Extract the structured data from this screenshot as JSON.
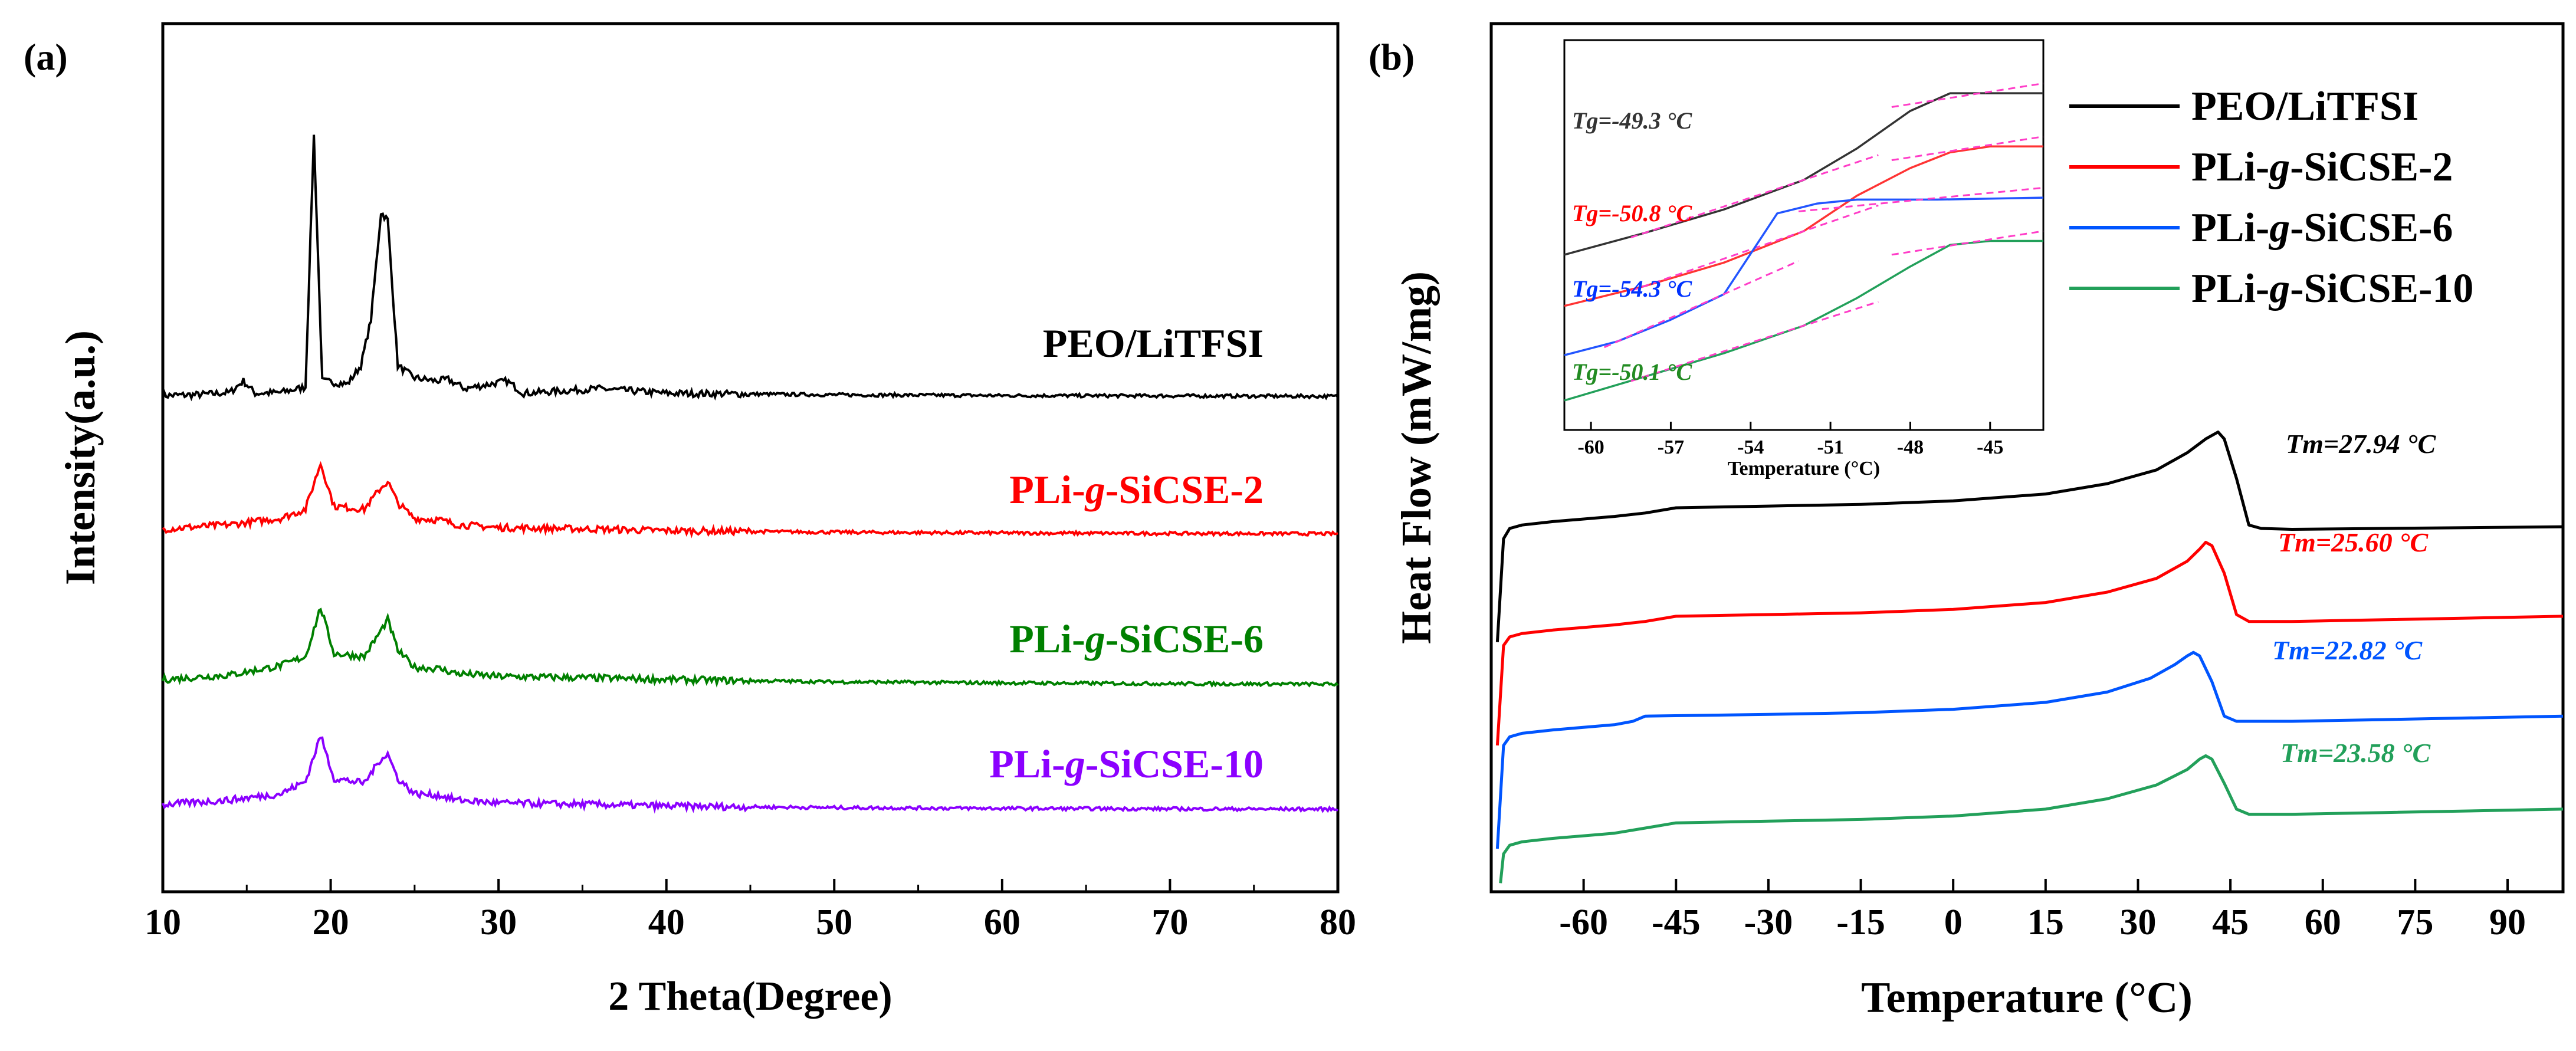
{
  "chart_data": [
    {
      "panel": "(a)",
      "type": "line",
      "xlabel": "2 Theta(Degree)",
      "ylabel": "Intensity(a.u.)",
      "xlim": [
        10,
        80
      ],
      "xticks": [
        "10",
        "20",
        "30",
        "40",
        "50",
        "60",
        "70",
        "80"
      ],
      "grid": false,
      "legend": "labels placed right of each trace",
      "series": [
        {
          "name": "PEO/LiTFSI",
          "color": "#000000",
          "peaks_2theta": [
            14.8,
            19.0,
            21.8,
            23.0,
            23.4,
            26.3,
            27.0,
            30.5,
            36.0
          ],
          "x": [
            10,
            12,
            14,
            14.8,
            15.5,
            17,
            18.5,
            19.0,
            19.5,
            21,
            21.8,
            22.4,
            23.0,
            23.4,
            24.0,
            25,
            26.3,
            27.0,
            28,
            30.5,
            31.5,
            36.0,
            40,
            50,
            60,
            70,
            80
          ],
          "y": [
            0.05,
            0.1,
            0.25,
            1.0,
            0.2,
            0.25,
            0.6,
            17.0,
            1.0,
            0.8,
            2.0,
            5.0,
            12.0,
            11.5,
            2.0,
            1.2,
            1.0,
            1.1,
            0.5,
            1.0,
            0.2,
            0.5,
            0.2,
            0.1,
            0.05,
            0.03,
            0
          ]
        },
        {
          "name": "PLi-g-SiCSE-2",
          "color": "#ff0000",
          "peaks_2theta": [
            19.4,
            23.4,
            26.5
          ],
          "x": [
            10,
            14,
            17,
            18.5,
            19.4,
            20.2,
            22,
            23.0,
            23.4,
            24.0,
            25,
            26.5,
            27.5,
            30,
            36,
            40,
            50,
            60,
            70,
            80
          ],
          "y": [
            0.3,
            0.6,
            1.0,
            1.6,
            4.6,
            1.8,
            1.6,
            3.0,
            3.4,
            2.0,
            1.0,
            0.9,
            0.6,
            0.4,
            0.3,
            0.2,
            0.1,
            0.05,
            0.02,
            0
          ]
        },
        {
          "name": "PLi-g-SiCSE-6",
          "color": "#008000",
          "peaks_2theta": [
            19.4,
            23.4,
            26.5,
            36.0,
            39.8
          ],
          "x": [
            10,
            14,
            17,
            18.5,
            19.4,
            20.2,
            22,
            23.0,
            23.4,
            24.0,
            25,
            26.5,
            27.5,
            30,
            36,
            40,
            50,
            60,
            70,
            80
          ],
          "y": [
            0.3,
            0.6,
            1.2,
            1.8,
            5.0,
            2.0,
            1.8,
            3.5,
            4.2,
            2.2,
            1.1,
            1.0,
            0.7,
            0.5,
            0.4,
            0.3,
            0.15,
            0.08,
            0.03,
            0
          ]
        },
        {
          "name": "PLi-g-SiCSE-10",
          "color": "#8b00ff",
          "peaks_2theta": [
            19.4,
            23.4,
            26.5
          ],
          "x": [
            10,
            14,
            17,
            18.5,
            19.4,
            20.2,
            22,
            23.0,
            23.4,
            24.0,
            25,
            26.5,
            27.5,
            30,
            36,
            40,
            50,
            60,
            70,
            80
          ],
          "y": [
            0.3,
            0.6,
            1.0,
            1.8,
            4.8,
            2.0,
            1.7,
            3.3,
            3.6,
            2.0,
            1.0,
            0.9,
            0.6,
            0.4,
            0.3,
            0.2,
            0.1,
            0.05,
            0.02,
            0
          ]
        }
      ]
    },
    {
      "panel": "(b)",
      "type": "line",
      "xlabel": "Temperature (°C)",
      "ylabel": "Heat Flow (mW/mg)",
      "xlim": [
        -75,
        99
      ],
      "xticks": [
        "-60",
        "-45",
        "-30",
        "-15",
        "0",
        "15",
        "30",
        "45",
        "60",
        "75",
        "90"
      ],
      "xtick_values": [
        -60,
        -45,
        -30,
        -15,
        0,
        15,
        30,
        45,
        60,
        75,
        90
      ],
      "grid": false,
      "legend": "top-right",
      "series": [
        {
          "name": "PEO/LiTFSI",
          "color": "#000000",
          "tm_label": "Tm=27.94 °C",
          "x": [
            -74,
            -73,
            -72,
            -70,
            -65,
            -55,
            -50,
            -45,
            -30,
            -15,
            0,
            15,
            25,
            33,
            38,
            41,
            43,
            44,
            46,
            48,
            50,
            55,
            70,
            99
          ],
          "y": [
            -30,
            30,
            36,
            38,
            40,
            43,
            45,
            48,
            49,
            50,
            52,
            56,
            62,
            70,
            80,
            88,
            92,
            88,
            65,
            38,
            36,
            35.5,
            36,
            37
          ]
        },
        {
          "name": "PLi-g-SiCSE-2",
          "color": "#ff0000",
          "tm_label": "Tm=25.60 °C",
          "x": [
            -74,
            -73,
            -72,
            -70,
            -65,
            -55,
            -50,
            -45,
            -30,
            -15,
            0,
            15,
            25,
            33,
            38,
            40,
            41,
            42,
            44,
            46,
            48,
            55,
            70,
            99
          ],
          "y": [
            -90,
            -32,
            -27,
            -25,
            -23,
            -20,
            -18,
            -15,
            -14,
            -13,
            -11,
            -7,
            -1,
            7,
            17,
            24,
            28,
            26,
            10,
            -14,
            -18,
            -18,
            -17,
            -15
          ]
        },
        {
          "name": "PLi-g-SiCSE-6",
          "color": "#0055ff",
          "tm_label": "Tm=22.82 °C",
          "x": [
            -74,
            -73,
            -72,
            -70,
            -65,
            -55,
            -52,
            -50,
            -30,
            -15,
            0,
            15,
            25,
            32,
            36,
            38,
            39,
            40,
            42,
            44,
            46,
            55,
            70,
            99
          ],
          "y": [
            -150,
            -90,
            -85,
            -83,
            -81,
            -78,
            -76,
            -73,
            -72,
            -71,
            -69,
            -65,
            -59,
            -51,
            -43,
            -38,
            -36,
            -38,
            -53,
            -73,
            -76,
            -76,
            -75,
            -73
          ]
        },
        {
          "name": "PLi-g-SiCSE-10",
          "color": "#22a05a",
          "tm_label": "Tm=23.58 °C",
          "x": [
            -73.5,
            -73,
            -72,
            -70,
            -65,
            -55,
            -50,
            -45,
            -30,
            -15,
            0,
            15,
            25,
            33,
            38,
            40,
            41,
            42,
            44,
            46,
            48,
            55,
            70,
            99
          ],
          "y": [
            -170,
            -153,
            -148,
            -146,
            -144,
            -141,
            -138,
            -135,
            -134,
            -133,
            -131,
            -127,
            -121,
            -113,
            -104,
            -98,
            -96,
            -98,
            -112,
            -127,
            -130,
            -130,
            -129,
            -127
          ]
        }
      ],
      "inset": {
        "xlabel": "Temperature (°C)",
        "xlim": [
          -61,
          -43
        ],
        "xticks": [
          "-60",
          "-57",
          "-54",
          "-51",
          "-48",
          "-45"
        ],
        "xtick_values": [
          -60,
          -57,
          -54,
          -51,
          -48,
          -45
        ],
        "tangent_color": "#ff3dc8",
        "curves": [
          {
            "name": "PEO/LiTFSI",
            "color": "#333333",
            "tg_label": "Tg=-49.3 °C",
            "x": [
              -61,
              -58,
              -55,
              -52,
              -50,
              -48,
              -46.5,
              -45,
              -43
            ],
            "y": [
              4.0,
              4.55,
              5.15,
              5.9,
              6.7,
              7.65,
              8.1,
              8.1,
              8.1
            ]
          },
          {
            "name": "PLi-g-SiCSE-2",
            "color": "#ff3333",
            "tg_label": "Tg=-50.8 °C",
            "x": [
              -61,
              -58,
              -55,
              -52,
              -50,
              -48,
              -46.5,
              -45,
              -43
            ],
            "y": [
              2.7,
              3.2,
              3.8,
              4.6,
              5.5,
              6.2,
              6.6,
              6.75,
              6.75
            ]
          },
          {
            "name": "PLi-g-SiCSE-6",
            "color": "#2255ff",
            "tg_label": "Tg=-54.3 °C",
            "x": [
              -61,
              -59,
              -57,
              -55,
              -53,
              -51.5,
              -50,
              -47,
              -43
            ],
            "y": [
              1.45,
              1.8,
              2.35,
              3.0,
              5.05,
              5.3,
              5.4,
              5.4,
              5.45
            ]
          },
          {
            "name": "PLi-g-SiCSE-10",
            "color": "#22a05a",
            "tg_label": "Tg=-50.1 °C",
            "x": [
              -61,
              -58,
              -55,
              -52,
              -50,
              -48,
              -46.5,
              -45,
              -43
            ],
            "y": [
              0.3,
              0.9,
              1.5,
              2.2,
              2.9,
              3.7,
              4.25,
              4.35,
              4.35
            ]
          }
        ]
      }
    }
  ]
}
